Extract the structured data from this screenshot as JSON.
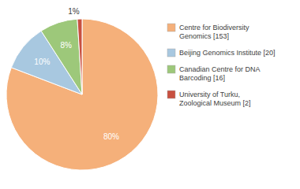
{
  "chart_data": {
    "type": "pie",
    "categories": [
      "Centre for Biodiversity\nGenomics [153]",
      "Beijing Genomics Institute [20]",
      "Canadian Centre for DNA\nBarcoding [16]",
      "University of Turku,\nZoological Museum [2]"
    ],
    "values": [
      80,
      10,
      8,
      1
    ],
    "value_labels": [
      "80%",
      "10%",
      "8%",
      "1%"
    ],
    "colors": [
      "#f5b07a",
      "#a8c8e0",
      "#9dc87a",
      "#c85040"
    ],
    "data_labels": true,
    "legend": "right"
  }
}
